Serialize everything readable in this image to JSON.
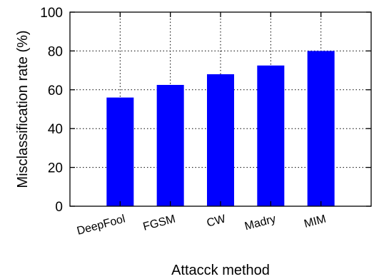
{
  "chart_data": {
    "type": "bar",
    "title": "",
    "xlabel": "Attacck method",
    "ylabel": "Misclassification rate (%)",
    "categories": [
      "DeepFool",
      "FGSM",
      "CW",
      "Madry",
      "MIM"
    ],
    "values": [
      56,
      62.5,
      68,
      72.5,
      80
    ],
    "ylim": [
      0,
      100
    ],
    "yticks": [
      "0",
      "20",
      "40",
      "60",
      "80",
      "100"
    ],
    "ytick_values": [
      0,
      20,
      40,
      60,
      80,
      100
    ],
    "grid": true,
    "grid_style": "dotted",
    "bar_color": "#0000ff",
    "legend": "none"
  }
}
